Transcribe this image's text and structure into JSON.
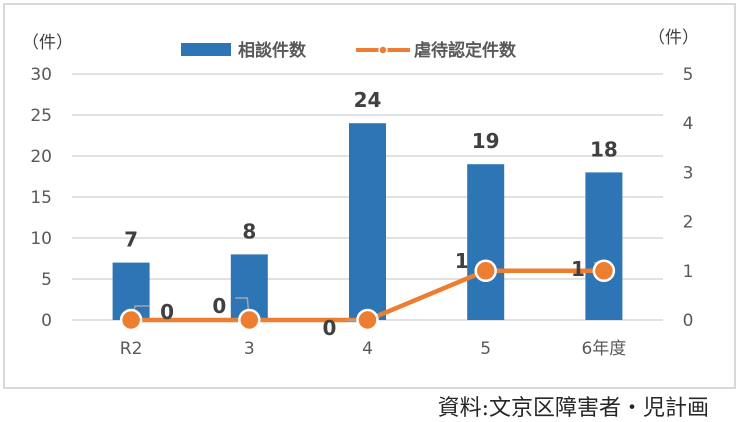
{
  "chart_data": {
    "type": "bar+line",
    "title": "",
    "categories": [
      "R2",
      "3",
      "4",
      "5",
      "6年度"
    ],
    "series": [
      {
        "name": "相談件数",
        "type": "bar",
        "axis": "left",
        "color": "#2E75B6",
        "values": [
          7,
          8,
          24,
          19,
          18
        ]
      },
      {
        "name": "虐待認定件数",
        "type": "line",
        "axis": "right",
        "color": "#ED7D31",
        "values": [
          0,
          0,
          0,
          1,
          1
        ]
      }
    ],
    "left_axis": {
      "label": "（件）",
      "ticks": [
        0,
        5,
        10,
        15,
        20,
        25,
        30
      ],
      "ylim": [
        0,
        30
      ]
    },
    "right_axis": {
      "label": "（件）",
      "ticks": [
        0,
        1,
        2,
        3,
        4,
        5
      ],
      "ylim": [
        0,
        5
      ]
    },
    "grid": true,
    "legend_position": "top"
  },
  "labels": {
    "left_unit": "（件）",
    "right_unit": "（件）",
    "legend_bar": "相談件数",
    "legend_line": "虐待認定件数",
    "source": "資料:文京区障害者・児計画"
  },
  "left_ticks": [
    "0",
    "5",
    "10",
    "15",
    "20",
    "25",
    "30"
  ],
  "right_ticks": [
    "0",
    "1",
    "2",
    "3",
    "4",
    "5"
  ],
  "x_labels": [
    "R2",
    "3",
    "4",
    "5",
    "6年度"
  ],
  "bar_labels": [
    "7",
    "8",
    "24",
    "19",
    "18"
  ],
  "line_labels": [
    "0",
    "0",
    "0",
    "1",
    "1"
  ],
  "colors": {
    "bar": "#2E75B6",
    "line": "#ED7D31",
    "grid": "#D9D9D9"
  }
}
